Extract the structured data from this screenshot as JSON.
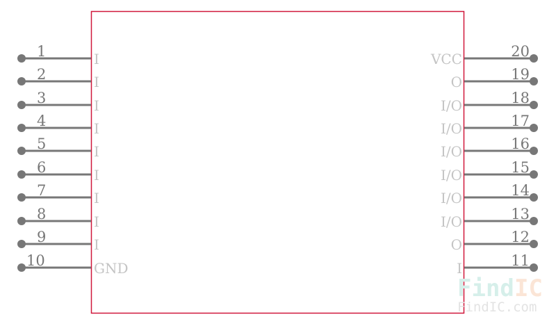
{
  "component": {
    "body_color": "#d0173a",
    "pin_color": "#777777",
    "left_pins": [
      {
        "number": "1",
        "name": "I"
      },
      {
        "number": "2",
        "name": "I"
      },
      {
        "number": "3",
        "name": "I"
      },
      {
        "number": "4",
        "name": "I"
      },
      {
        "number": "5",
        "name": "I"
      },
      {
        "number": "6",
        "name": "I"
      },
      {
        "number": "7",
        "name": "I"
      },
      {
        "number": "8",
        "name": "I"
      },
      {
        "number": "9",
        "name": "I"
      },
      {
        "number": "10",
        "name": "GND"
      }
    ],
    "right_pins": [
      {
        "number": "20",
        "name": "VCC"
      },
      {
        "number": "19",
        "name": "O"
      },
      {
        "number": "18",
        "name": "I/O"
      },
      {
        "number": "17",
        "name": "I/O"
      },
      {
        "number": "16",
        "name": "I/O"
      },
      {
        "number": "15",
        "name": "I/O"
      },
      {
        "number": "14",
        "name": "I/O"
      },
      {
        "number": "13",
        "name": "I/O"
      },
      {
        "number": "12",
        "name": "O"
      },
      {
        "number": "11",
        "name": "I"
      }
    ]
  },
  "watermark": {
    "logo_find": "Find",
    "logo_ic": "IC",
    "url": "FindIC.com",
    "find_color": "#d6efea",
    "ic_color": "#fbe5d6"
  }
}
